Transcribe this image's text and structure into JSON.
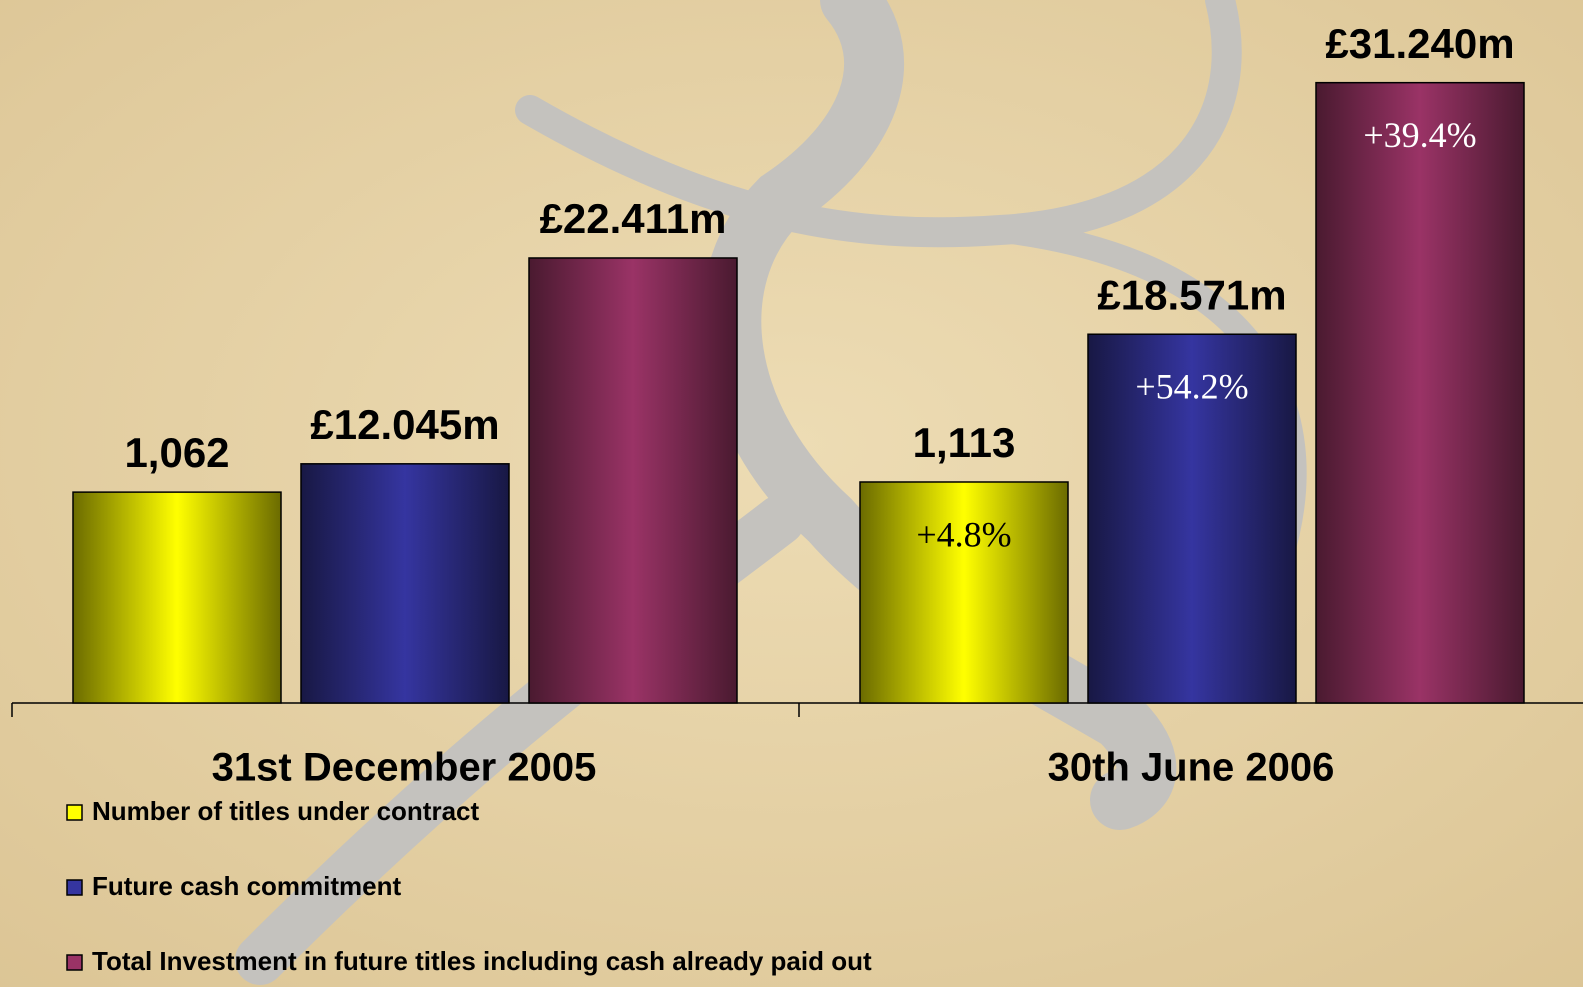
{
  "chart_data": {
    "type": "bar",
    "categories": [
      "31st December 2005",
      "30th June 2006"
    ],
    "ylim": [
      0,
      35
    ],
    "y2lim": [
      0,
      3500
    ],
    "series": [
      {
        "name": "Number of titles under contract",
        "color": "#ffff00",
        "axis": "y2",
        "values": [
          1062,
          1113
        ],
        "value_labels": [
          "1,062",
          "1,113"
        ],
        "change_labels": [
          null,
          "+4.8%"
        ]
      },
      {
        "name": "Future cash commitment",
        "color": "#3535a0",
        "values": [
          12.045,
          18.571
        ],
        "value_labels": [
          "£12.045m",
          "£18.571m"
        ],
        "change_labels": [
          null,
          "+54.2%"
        ]
      },
      {
        "name": "Total Investment in future titles including cash already paid out",
        "color": "#9a3366",
        "values": [
          22.411,
          31.24
        ],
        "value_labels": [
          "£22.411m",
          "£31.240m"
        ],
        "change_labels": [
          null,
          "+39.4%"
        ]
      }
    ]
  }
}
